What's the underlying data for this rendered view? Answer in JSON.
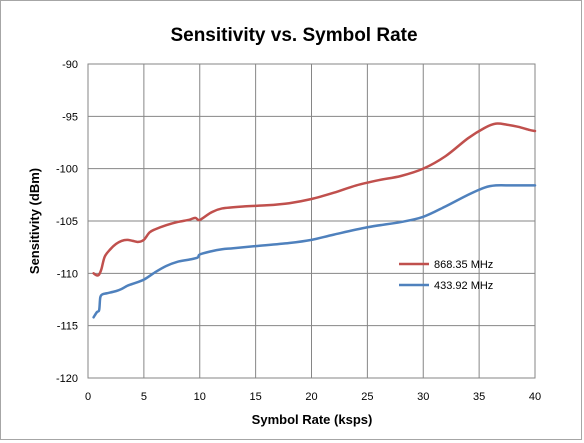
{
  "chart_data": {
    "type": "line",
    "title": "Sensitivity vs. Symbol Rate",
    "xlabel": "Symbol Rate (ksps)",
    "ylabel": "Sensitivity (dBm)",
    "xlim": [
      0,
      40
    ],
    "ylim": [
      -120,
      -90
    ],
    "x_ticks": [
      0,
      5,
      10,
      15,
      20,
      25,
      30,
      35,
      40
    ],
    "y_ticks": [
      -90,
      -95,
      -100,
      -105,
      -110,
      -115,
      -120
    ],
    "x_tick_labels": [
      "0",
      "5",
      "10",
      "15",
      "20",
      "25",
      "30",
      "35",
      "40"
    ],
    "y_tick_labels": [
      "-90",
      "-95",
      "-100",
      "-105",
      "-110",
      "-115",
      "-120"
    ],
    "grid": true,
    "legend_position": "right",
    "series": [
      {
        "name": "868.35 MHz",
        "color": "#c0504d",
        "x": [
          0.5,
          0.8,
          1.0,
          1.2,
          1.5,
          2.0,
          2.5,
          3.0,
          3.5,
          4.0,
          4.5,
          5.0,
          5.5,
          6.0,
          7.0,
          8.0,
          9.0,
          9.6,
          10.0,
          11.0,
          12.0,
          14.0,
          16.0,
          18.0,
          20.0,
          22.0,
          24.0,
          26.0,
          28.0,
          30.0,
          32.0,
          34.0,
          35.5,
          36.5,
          37.5,
          38.5,
          39.5,
          40.0
        ],
        "y": [
          -110.0,
          -110.2,
          -110.1,
          -109.6,
          -108.4,
          -107.7,
          -107.2,
          -106.9,
          -106.8,
          -106.9,
          -107.0,
          -106.8,
          -106.1,
          -105.8,
          -105.4,
          -105.1,
          -104.9,
          -104.7,
          -104.9,
          -104.2,
          -103.8,
          -103.6,
          -103.5,
          -103.3,
          -102.9,
          -102.3,
          -101.6,
          -101.1,
          -100.7,
          -100.0,
          -98.8,
          -97.1,
          -96.1,
          -95.7,
          -95.8,
          -96.0,
          -96.3,
          -96.4
        ]
      },
      {
        "name": "433.92 MHz",
        "color": "#4f81bd",
        "x": [
          0.5,
          0.8,
          1.0,
          1.1,
          1.3,
          1.7,
          2.5,
          3.0,
          3.5,
          4.0,
          5.0,
          6.0,
          7.0,
          8.0,
          9.0,
          9.8,
          10.0,
          11.0,
          12.0,
          13.0,
          15.0,
          18.0,
          20.0,
          22.0,
          25.0,
          28.0,
          30.0,
          32.0,
          34.0,
          35.5,
          36.5,
          38.0,
          40.0
        ],
        "y": [
          -114.2,
          -113.7,
          -113.5,
          -112.3,
          -112.0,
          -111.9,
          -111.7,
          -111.5,
          -111.2,
          -111.0,
          -110.6,
          -109.9,
          -109.3,
          -108.9,
          -108.7,
          -108.5,
          -108.2,
          -107.9,
          -107.7,
          -107.6,
          -107.4,
          -107.1,
          -106.8,
          -106.3,
          -105.6,
          -105.1,
          -104.6,
          -103.6,
          -102.5,
          -101.8,
          -101.6,
          -101.6,
          -101.6
        ]
      }
    ]
  }
}
